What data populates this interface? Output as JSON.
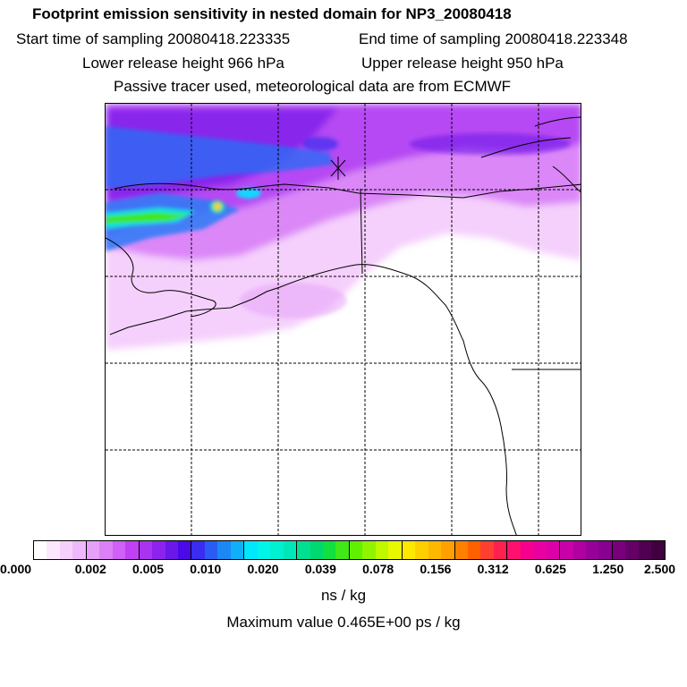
{
  "header": {
    "title": "Footprint emission sensitivity in nested domain for NP3_20080418",
    "start_time": "Start time of sampling 20080418.223335",
    "end_time": "End time of sampling 20080418.223348",
    "lower_height": "Lower release height  966 hPa",
    "upper_height": "Upper release height  950 hPa",
    "tracer_note": "Passive tracer used, meteorological data are from ECMWF"
  },
  "chart_data": {
    "type": "heatmap",
    "title": "Footprint emission sensitivity in nested domain for NP3_20080418",
    "grid": true,
    "colorbar": {
      "tick_labels": [
        "0.000",
        "0.002",
        "0.005",
        "0.010",
        "0.020",
        "0.039",
        "0.078",
        "0.156",
        "0.312",
        "0.625",
        "1.250",
        "2.500"
      ],
      "unit": "ns / kg",
      "colors": [
        "#ffffff",
        "#fbe8fe",
        "#f6d0fd",
        "#f0b8fc",
        "#e6a0fa",
        "#dc80f8",
        "#d060f6",
        "#c040f4",
        "#a833f0",
        "#8c22ec",
        "#6a17ea",
        "#4a0ae8",
        "#3a2cf0",
        "#2a5cf4",
        "#1c88f6",
        "#10b0f8",
        "#00e8ff",
        "#00f4e8",
        "#00f0d0",
        "#00e8b8",
        "#00e090",
        "#00d870",
        "#10e040",
        "#40e818",
        "#60f000",
        "#90f400",
        "#c0f800",
        "#e8f800",
        "#ffe800",
        "#ffd000",
        "#ffb800",
        "#ffa000",
        "#ff8000",
        "#ff6000",
        "#ff4030",
        "#ff2050",
        "#ff1070",
        "#f60090",
        "#e800a0",
        "#dc00a8",
        "#c800a8",
        "#b000a0",
        "#98009a",
        "#880090",
        "#78007a",
        "#640066",
        "#500052",
        "#400040"
      ]
    },
    "max_value": "Maximum value  0.465E+00 ps / kg",
    "release_marker": "x"
  }
}
